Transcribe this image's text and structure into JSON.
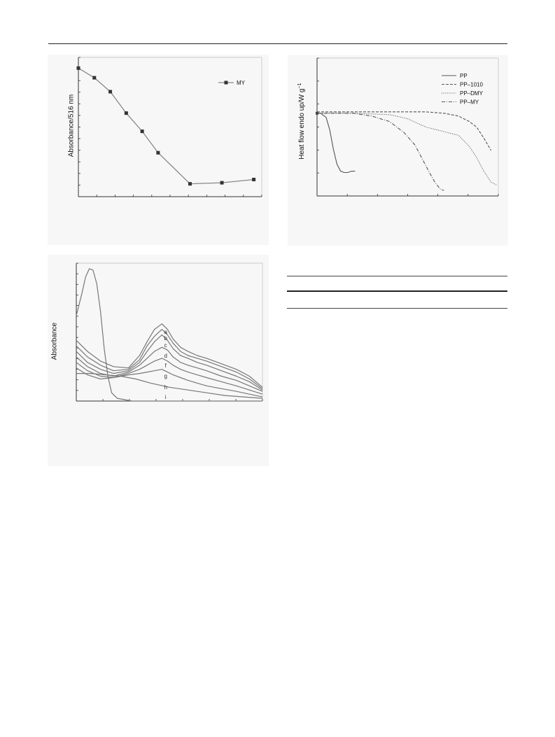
{
  "chart_data": [
    {
      "type": "line",
      "ylabel": "Absorbance/516 nm",
      "series": [
        {
          "name": "MY",
          "values": [
            10.0,
            9.1,
            7.8,
            5.8,
            4.1,
            2.1,
            -0.8,
            -0.7,
            -0.4
          ]
        }
      ],
      "x": [
        0,
        1,
        2,
        3,
        4,
        5,
        7,
        9,
        11
      ],
      "xlim": [
        0,
        11.5
      ],
      "ylim": [
        -2,
        11
      ],
      "legend": "top-right",
      "markers": "filled squares",
      "line_color": "#888888",
      "marker_color": "#333333",
      "grid": false
    },
    {
      "type": "line",
      "ylabel": "Heat flow endo up/W g",
      "ylabel_superscript": "−1",
      "legend": "top-right",
      "xlim": [
        0,
        100
      ],
      "ylim": [
        0,
        100
      ],
      "grid": false,
      "series": [
        {
          "name": "PP",
          "style": "solid",
          "x": [
            0,
            2,
            5,
            7,
            9,
            11,
            13,
            15,
            17,
            19,
            21
          ],
          "y": [
            60,
            60,
            57,
            48,
            34,
            23,
            18,
            17,
            17,
            18,
            18
          ]
        },
        {
          "name": "PP–1010",
          "style": "dashed",
          "x": [
            0,
            20,
            40,
            60,
            70,
            78,
            84,
            88,
            92,
            96
          ],
          "y": [
            61,
            61,
            61,
            61,
            60,
            58,
            54,
            50,
            42,
            33
          ]
        },
        {
          "name": "PP–DMY",
          "style": "dotted",
          "x": [
            0,
            20,
            40,
            50,
            55,
            60,
            66,
            72,
            78,
            84,
            88,
            92,
            96,
            99
          ],
          "y": [
            60,
            60,
            59,
            56,
            53,
            50,
            48,
            46,
            44,
            36,
            28,
            18,
            10,
            8
          ]
        },
        {
          "name": "PP–MY",
          "style": "dashdot",
          "x": [
            0,
            10,
            20,
            30,
            40,
            48,
            54,
            58,
            62,
            65,
            68,
            70
          ],
          "y": [
            60,
            60,
            60,
            58,
            54,
            46,
            37,
            27,
            17,
            10,
            5,
            4
          ]
        }
      ]
    },
    {
      "type": "line",
      "ylabel": "Absorbance",
      "xlim": [
        0,
        100
      ],
      "ylim": [
        0,
        100
      ],
      "grid": false,
      "series": [
        {
          "name": "a",
          "x": [
            0,
            6,
            13,
            20,
            28,
            34,
            38,
            42,
            46,
            49,
            52,
            56,
            60,
            65,
            70,
            78,
            86,
            93,
            100
          ],
          "y": [
            44,
            36,
            29,
            25,
            24,
            33,
            43,
            52,
            56,
            52,
            45,
            39,
            36,
            33,
            31,
            27,
            23,
            18,
            10
          ]
        },
        {
          "name": "b",
          "x": [
            0,
            6,
            13,
            20,
            28,
            34,
            38,
            42,
            46,
            49,
            52,
            56,
            60,
            65,
            70,
            78,
            86,
            93,
            100
          ],
          "y": [
            40,
            32,
            26,
            22,
            23,
            30,
            40,
            47,
            52,
            48,
            42,
            36,
            33,
            31,
            29,
            25,
            21,
            16,
            9
          ]
        },
        {
          "name": "c",
          "x": [
            0,
            6,
            13,
            20,
            28,
            34,
            38,
            42,
            46,
            49,
            52,
            56,
            60,
            65,
            70,
            78,
            86,
            93,
            100
          ],
          "y": [
            36,
            28,
            23,
            20,
            22,
            28,
            36,
            43,
            48,
            44,
            38,
            33,
            31,
            28,
            26,
            22,
            18,
            14,
            8
          ]
        },
        {
          "name": "d",
          "x": [
            0,
            6,
            13,
            20,
            28,
            34,
            38,
            42,
            46,
            49,
            52,
            56,
            60,
            65,
            70,
            78,
            86,
            93,
            100
          ],
          "y": [
            32,
            25,
            20,
            18,
            21,
            26,
            31,
            36,
            39,
            37,
            32,
            28,
            26,
            24,
            22,
            18,
            15,
            11,
            7
          ]
        },
        {
          "name": "f",
          "x": [
            0,
            6,
            13,
            20,
            28,
            34,
            38,
            42,
            46,
            49,
            52,
            56,
            60,
            65,
            70,
            78,
            86,
            93,
            100
          ],
          "y": [
            28,
            22,
            18,
            17,
            20,
            23,
            26,
            29,
            31,
            29,
            26,
            23,
            21,
            19,
            17,
            14,
            11,
            8,
            5
          ]
        },
        {
          "name": "g",
          "x": [
            0,
            6,
            13,
            20,
            28,
            34,
            38,
            42,
            46,
            49,
            52,
            56,
            60,
            65,
            70,
            78,
            86,
            93,
            100
          ],
          "y": [
            24,
            19,
            16,
            17,
            19,
            20,
            21,
            22,
            23,
            21,
            19,
            17,
            15,
            13,
            11,
            9,
            7,
            5,
            3
          ]
        },
        {
          "name": "h",
          "x": [
            0,
            8,
            16,
            24,
            32,
            40,
            50,
            60,
            70,
            80,
            90,
            100
          ],
          "y": [
            20,
            20,
            19,
            18,
            16,
            13,
            10,
            8,
            6,
            4,
            3,
            2
          ]
        },
        {
          "name": "i",
          "x": [
            0,
            3,
            5,
            7,
            9,
            11,
            13,
            15,
            17,
            19,
            22,
            26,
            30,
            40,
            50,
            100
          ],
          "y": [
            62,
            78,
            90,
            96,
            95,
            85,
            65,
            38,
            18,
            6,
            2,
            1,
            0,
            0,
            0,
            0
          ]
        }
      ],
      "curve_labels": [
        "a",
        "b",
        "c",
        "d",
        "f",
        "g",
        "h",
        "i"
      ]
    }
  ]
}
